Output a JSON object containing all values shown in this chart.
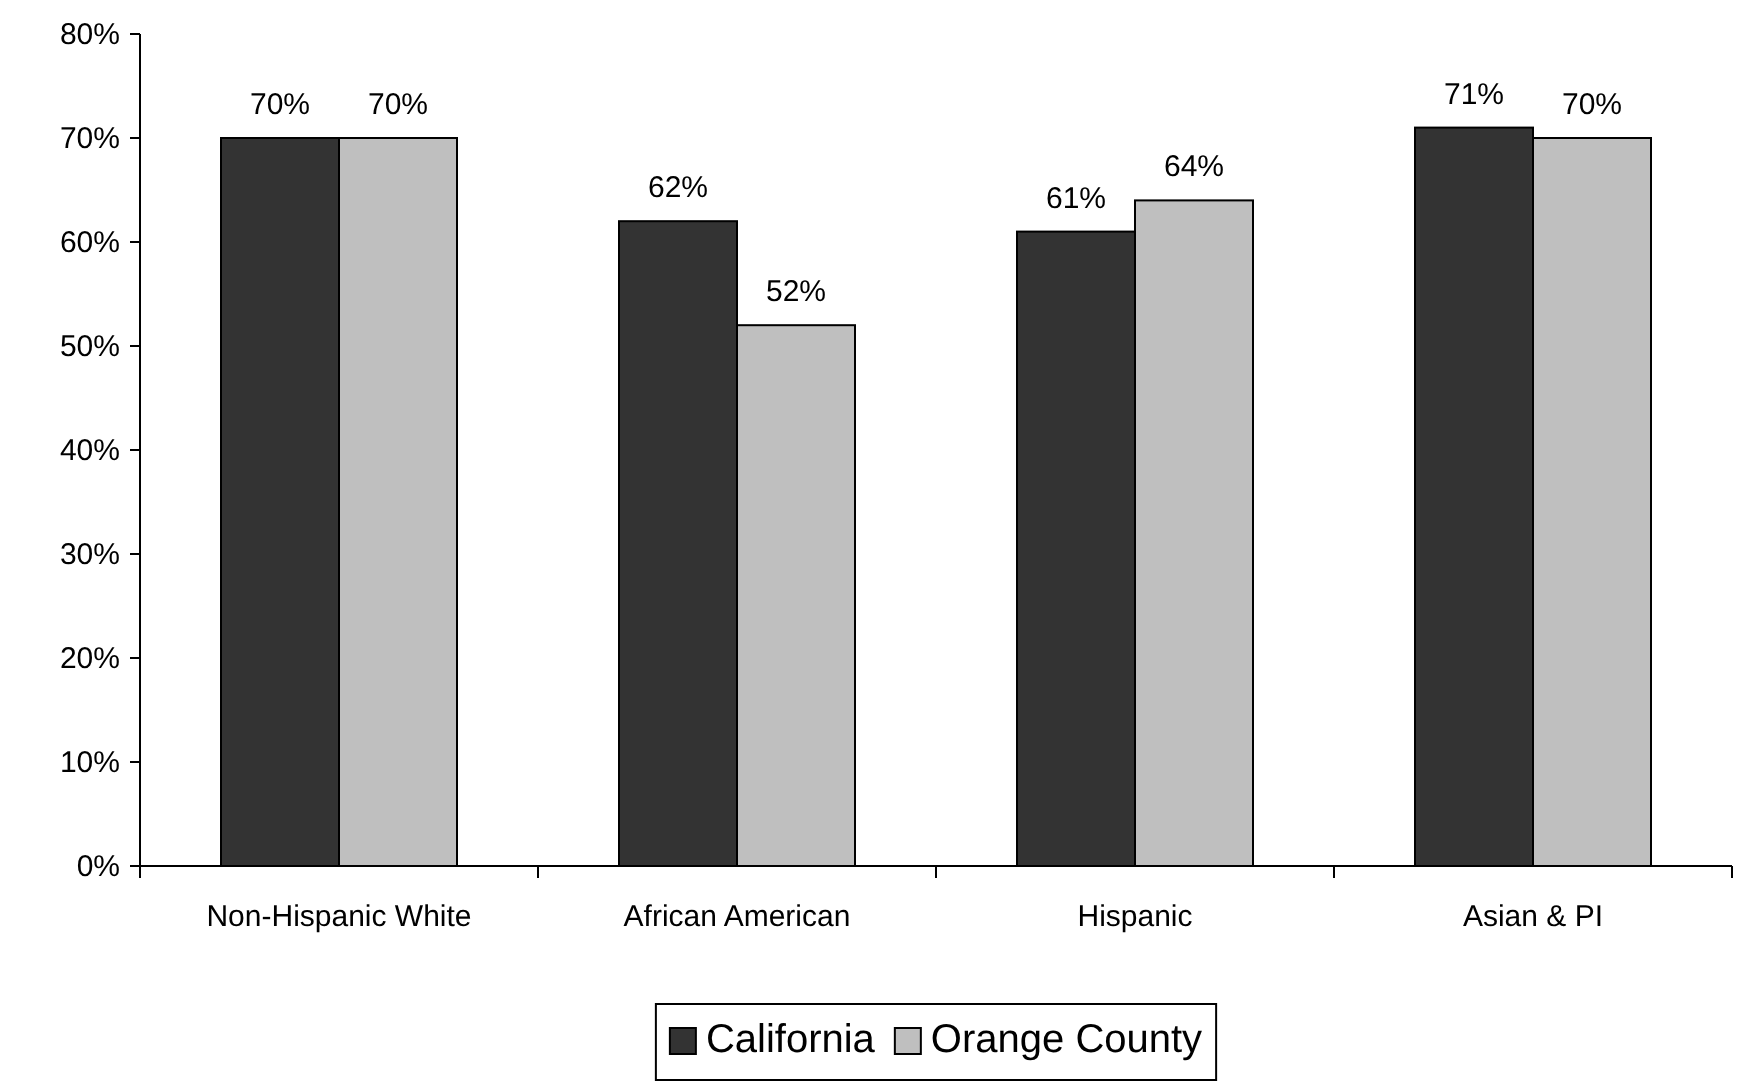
{
  "chart_data": {
    "type": "bar",
    "categories": [
      "Non-Hispanic White",
      "African American",
      "Hispanic",
      "Asian & PI"
    ],
    "series": [
      {
        "name": "California",
        "color": "#333333",
        "values": [
          70,
          62,
          61,
          71
        ],
        "value_labels": [
          "70%",
          "62%",
          "61%",
          "71%"
        ]
      },
      {
        "name": "Orange County",
        "color": "#bfbfbf",
        "values": [
          70,
          52,
          64,
          70
        ],
        "value_labels": [
          "70%",
          "52%",
          "64%",
          "70%"
        ]
      }
    ],
    "ylim": [
      0,
      80
    ],
    "yticks": [
      {
        "value": 0,
        "label": "0%"
      },
      {
        "value": 10,
        "label": "10%"
      },
      {
        "value": 20,
        "label": "20%"
      },
      {
        "value": 30,
        "label": "30%"
      },
      {
        "value": 40,
        "label": "40%"
      },
      {
        "value": 50,
        "label": "50%"
      },
      {
        "value": 60,
        "label": "60%"
      },
      {
        "value": 70,
        "label": "70%"
      },
      {
        "value": 80,
        "label": "80%"
      }
    ],
    "grid": false,
    "legend": "bottom"
  }
}
